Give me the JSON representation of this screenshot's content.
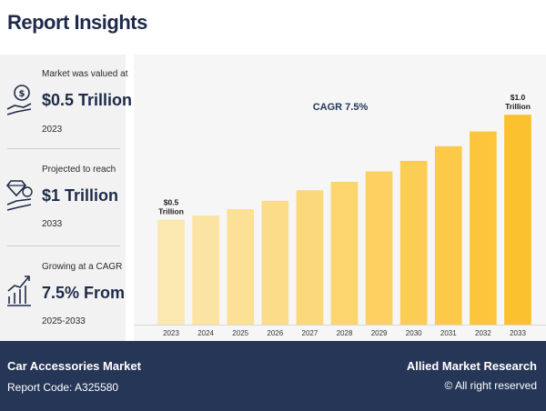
{
  "page": {
    "title": "Report Insights"
  },
  "stats": [
    {
      "label": "Market was valued at",
      "value": "$0.5 Trillion",
      "year": "2023",
      "icon": "money-hand-icon"
    },
    {
      "label": "Projected to reach",
      "value": "$1 Trillion",
      "year": "2033",
      "icon": "diamond-hand-icon"
    },
    {
      "label": "Growing at a CAGR",
      "value": "7.5% From",
      "year": "2025-2033",
      "icon": "growth-chart-icon"
    }
  ],
  "footer": {
    "market": "Car Accessories Market",
    "report_code": "Report Code: A325580",
    "brand": "Allied Market Research",
    "rights": "© All right reserved"
  },
  "colors": {
    "navy": "#253657",
    "title": "#1e2a4a",
    "bar_start": "#fbe8b0",
    "bar_end": "#fcc12e"
  },
  "chart_data": {
    "type": "bar",
    "annotation": "CAGR 7.5%",
    "categories": [
      "2023",
      "2024",
      "2025",
      "2026",
      "2027",
      "2028",
      "2029",
      "2030",
      "2031",
      "2032",
      "2033"
    ],
    "values": [
      0.5,
      0.52,
      0.55,
      0.59,
      0.64,
      0.68,
      0.73,
      0.78,
      0.85,
      0.92,
      1.0
    ],
    "value_labels": [
      {
        "index": 0,
        "lines": [
          "$0.5",
          "Trillion"
        ]
      },
      {
        "index": 10,
        "lines": [
          "$1.0",
          "Trillion"
        ]
      }
    ],
    "ylim": [
      0,
      1.2
    ],
    "unit": "Trillion USD",
    "grid": false,
    "legend": "none"
  }
}
